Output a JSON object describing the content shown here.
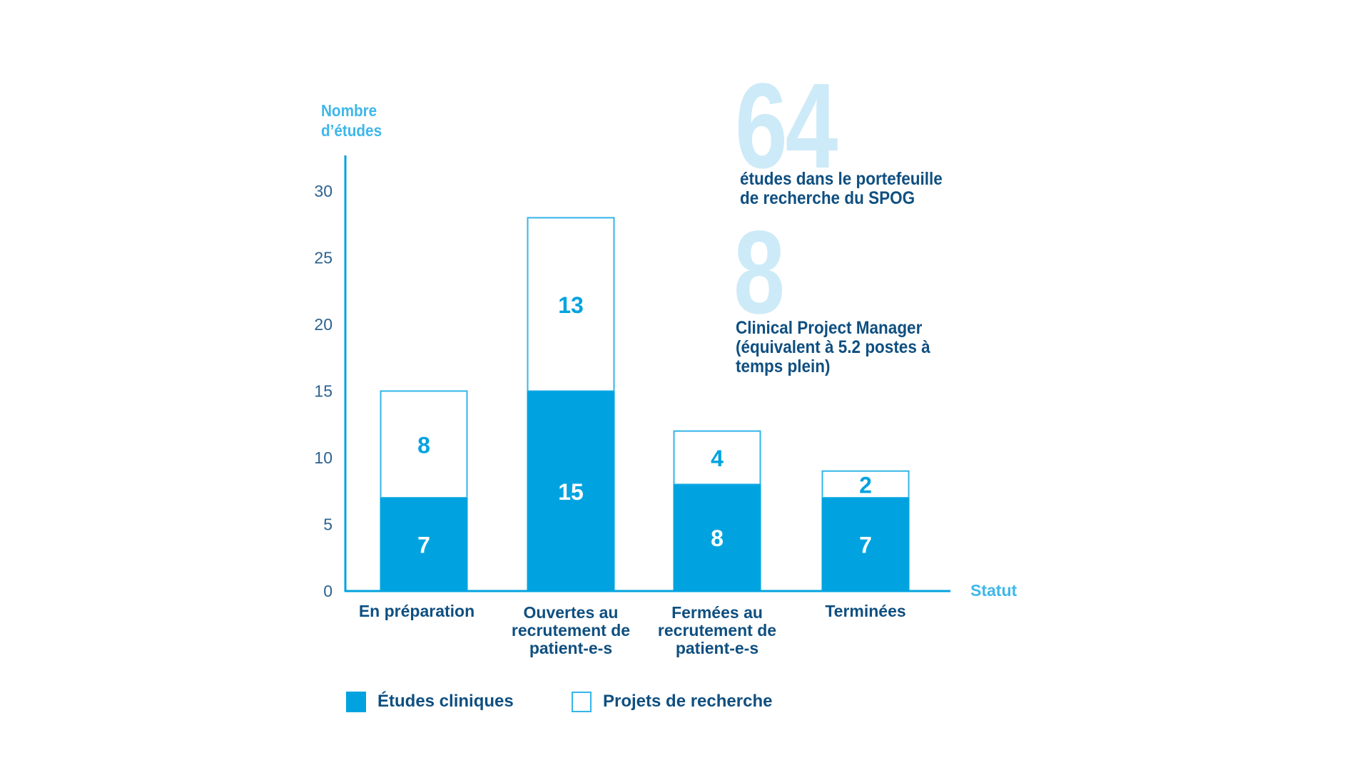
{
  "chart_data": {
    "type": "bar",
    "stacked": true,
    "categories": [
      [
        "En préparation"
      ],
      [
        "Ouvertes au",
        "recrutement de",
        "patient-e-s"
      ],
      [
        "Fermées au",
        "recrutement de",
        "patient-e-s"
      ],
      [
        "Terminées"
      ]
    ],
    "series": [
      {
        "name": "Études cliniques",
        "values": [
          7,
          15,
          8,
          7
        ],
        "color": "#00a3e0",
        "style": "filled"
      },
      {
        "name": "Projets de recherche",
        "values": [
          8,
          13,
          4,
          2
        ],
        "color": "#33b5e8",
        "style": "outline"
      }
    ],
    "ylabel": [
      "Nombre",
      "d’études"
    ],
    "xlabel": "Statut",
    "yticks": [
      0,
      5,
      10,
      15,
      20,
      25,
      30
    ],
    "ylim": [
      0,
      33
    ],
    "grid": false,
    "legend": "bottom-left"
  },
  "highlights": [
    {
      "number": "64",
      "text": [
        "études dans le portefeuille",
        "de recherche du SPOG"
      ]
    },
    {
      "number": "8",
      "text": [
        "Clinical Project Manager",
        "(équivalent à 5.2 postes à",
        "temps plein)"
      ]
    }
  ],
  "colors": {
    "dark_text": "#0f4f80",
    "accent": "#00a3e0",
    "axis_label": "#3fb7e9",
    "big_number": "#cdeaf8"
  }
}
